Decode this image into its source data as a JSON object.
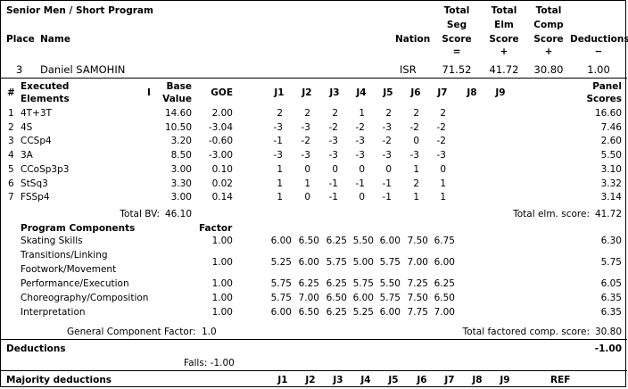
{
  "event": {
    "title": "Senior Men / Short Program"
  },
  "summary_headers": {
    "place": "Place",
    "name": "Name",
    "nation": "Nation",
    "total_seg": [
      "Total",
      "Seg",
      "Score",
      "="
    ],
    "total_elm": [
      "Total",
      "Elm",
      "Score",
      "+"
    ],
    "total_comp": [
      "Total",
      "Comp",
      "Score",
      "+"
    ],
    "deductions": [
      "Deductions",
      "−"
    ]
  },
  "skater": {
    "place": "3",
    "name": "Daniel SAMOHIN",
    "nation": "ISR",
    "seg_score": "71.52",
    "elm_score": "41.72",
    "comp_score": "30.80",
    "deductions": "1.00"
  },
  "elements_header": {
    "num": "#",
    "elements": [
      "Executed",
      "Elements"
    ],
    "info": "I",
    "base": [
      "Base",
      "Value"
    ],
    "goe": "GOE",
    "judges": [
      "J1",
      "J2",
      "J3",
      "J4",
      "J5",
      "J6",
      "J7",
      "J8",
      "J9"
    ],
    "panel": [
      "Panel",
      "Scores"
    ]
  },
  "elements": [
    {
      "num": "1",
      "name": "4T+3T",
      "base": "14.60",
      "goe": "2.00",
      "j": [
        "2",
        "2",
        "2",
        "1",
        "2",
        "2",
        "2"
      ],
      "panel": "16.60"
    },
    {
      "num": "2",
      "name": "4S",
      "base": "10.50",
      "goe": "-3.04",
      "j": [
        "-3",
        "-3",
        "-2",
        "-2",
        "-3",
        "-2",
        "-2"
      ],
      "panel": "7.46"
    },
    {
      "num": "3",
      "name": "CCSp4",
      "base": "3.20",
      "goe": "-0.60",
      "j": [
        "-1",
        "-2",
        "-3",
        "-3",
        "-2",
        "0",
        "-2"
      ],
      "panel": "2.60"
    },
    {
      "num": "4",
      "name": "3A",
      "base": "8.50",
      "goe": "-3.00",
      "j": [
        "-3",
        "-3",
        "-3",
        "-3",
        "-3",
        "-3",
        "-3"
      ],
      "panel": "5.50"
    },
    {
      "num": "5",
      "name": "CCoSp3p3",
      "base": "3.00",
      "goe": "0.10",
      "j": [
        "1",
        "0",
        "0",
        "0",
        "0",
        "1",
        "0"
      ],
      "panel": "3.10"
    },
    {
      "num": "6",
      "name": "StSq3",
      "base": "3.30",
      "goe": "0.02",
      "j": [
        "1",
        "1",
        "-1",
        "-1",
        "-1",
        "2",
        "1"
      ],
      "panel": "3.32"
    },
    {
      "num": "7",
      "name": "FSSp4",
      "base": "3.00",
      "goe": "0.14",
      "j": [
        "1",
        "0",
        "-1",
        "0",
        "-1",
        "1",
        "1"
      ],
      "panel": "3.14"
    }
  ],
  "total_bv": {
    "label": "Total BV:",
    "value": "46.10"
  },
  "total_elm": {
    "label": "Total elm. score:",
    "value": "41.72"
  },
  "components_header": {
    "title": "Program Components",
    "factor": "Factor"
  },
  "components": [
    {
      "name": "Skating Skills",
      "factor": "1.00",
      "j": [
        "6.00",
        "6.50",
        "6.25",
        "5.50",
        "6.00",
        "7.50",
        "6.75"
      ],
      "score": "6.30"
    },
    {
      "name": "Transitions/Linking Footwork/Movement",
      "name1": "Transitions/Linking",
      "name2": "Footwork/Movement",
      "factor": "1.00",
      "j": [
        "5.25",
        "6.00",
        "5.75",
        "5.00",
        "5.75",
        "7.00",
        "6.00"
      ],
      "score": "5.75"
    },
    {
      "name": "Performance/Execution",
      "factor": "1.00",
      "j": [
        "5.75",
        "6.25",
        "6.25",
        "5.75",
        "5.50",
        "7.25",
        "6.25"
      ],
      "score": "6.05"
    },
    {
      "name": "Choreography/Composition",
      "factor": "1.00",
      "j": [
        "5.75",
        "7.00",
        "6.50",
        "6.00",
        "5.75",
        "7.50",
        "6.50"
      ],
      "score": "6.35"
    },
    {
      "name": "Interpretation",
      "factor": "1.00",
      "j": [
        "6.00",
        "6.50",
        "6.25",
        "5.25",
        "6.00",
        "7.75",
        "7.00"
      ],
      "score": "6.35"
    }
  ],
  "general_factor": {
    "label": "General Component Factor:",
    "value": "1.0"
  },
  "total_comp": {
    "label": "Total factored comp. score:",
    "value": "30.80"
  },
  "deductions_section": {
    "title": "Deductions",
    "value": "-1.00",
    "falls": "Falls: -1.00"
  },
  "majority": {
    "title": "Majority deductions",
    "judges": [
      "J1",
      "J2",
      "J3",
      "J4",
      "J5",
      "J6",
      "J7",
      "J8",
      "J9"
    ],
    "ref": "REF"
  }
}
